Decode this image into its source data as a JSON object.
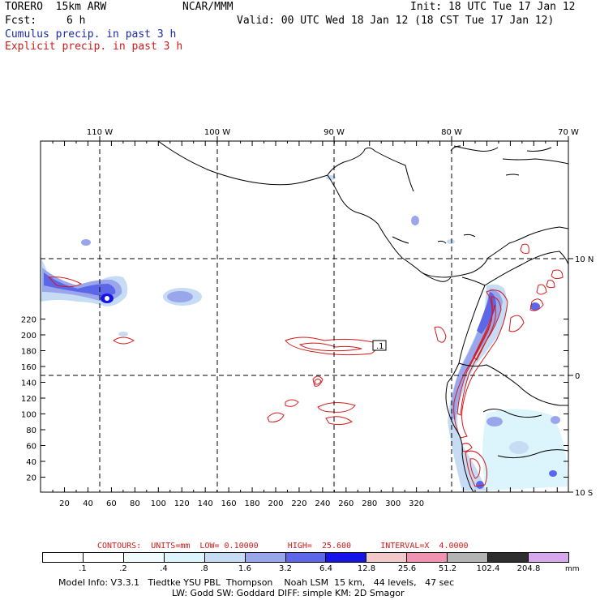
{
  "header": {
    "model": "TORERO  15km ARW",
    "org": "NCAR/MMM",
    "init": "Init: 18 UTC Tue 17 Jan 12",
    "fcst_label": "Fcst:",
    "fcst_value": "6 h",
    "valid": "Valid: 00 UTC Wed 18 Jan 12 (18 CST Tue 17 Jan 12)",
    "cumulus": "Cumulus precip. in past 3 h",
    "explicit": "Explicit precip. in past 3 h"
  },
  "map": {
    "x_ticks": [
      "20",
      "40",
      "60",
      "80",
      "100",
      "120",
      "140",
      "160",
      "180",
      "200",
      "220",
      "240",
      "260",
      "280",
      "300",
      "320"
    ],
    "y_ticks": [
      "20",
      "40",
      "60",
      "80",
      "100",
      "120",
      "140",
      "160",
      "180",
      "200",
      "220"
    ],
    "lon_labels": [
      "110 W",
      "100 W",
      "90 W",
      "80 W",
      "70 W"
    ],
    "lat_labels": [
      "10 N",
      "0",
      "10 S"
    ],
    "box_label": ".1",
    "colors": {
      "cumulus": "#3c46e0",
      "explicit": "#d21a1a",
      "coast": "#000000"
    }
  },
  "contours": {
    "text": "CONTOURS:  UNITS=mm  LOW= 0.10000      HIGH=  25.600      INTERVAL=X  4.0000"
  },
  "legend": {
    "labels": [
      ".1",
      ".2",
      ".4",
      ".8",
      "1.6",
      "3.2",
      "6.4",
      "12.8",
      "25.6",
      "51.2",
      "102.4",
      "204.8"
    ],
    "units": "mm",
    "colors": [
      "#ffffff",
      "#ffffff",
      "#f0fbff",
      "#dcf4fb",
      "#c6dcf5",
      "#9aa6ec",
      "#5c66e8",
      "#1414e8",
      "#f2c8c8",
      "#f092b0",
      "#b4b4b4",
      "#2e2e2e",
      "#d8a8ec"
    ]
  },
  "footer": {
    "line1": "Model Info: V3.3.1   Tiedtke YSU PBL  Thompson    Noah LSM  15 km,   44 levels,   47 sec",
    "line2": "LW: Godd SW: Goddard DIFF: simple KM: 2D Smagor"
  }
}
